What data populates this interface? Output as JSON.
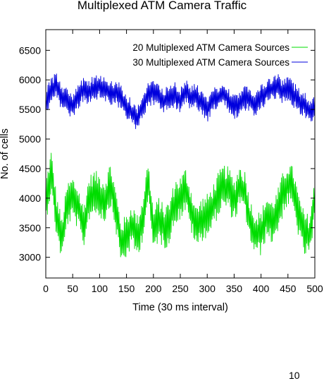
{
  "page_number": "10",
  "chart_data": {
    "type": "line",
    "title": "Multiplexed ATM Camera Traffic",
    "xlabel": "Time (30 ms interval)",
    "ylabel": "No. of cells",
    "xlim": [
      0,
      500
    ],
    "ylim": [
      2650,
      6850
    ],
    "xticks": [
      "0",
      "50",
      "100",
      "150",
      "200",
      "250",
      "300",
      "350",
      "400",
      "450",
      "500"
    ],
    "yticks": [
      "3000",
      "3500",
      "4000",
      "4500",
      "5000",
      "5500",
      "6000",
      "6500"
    ],
    "legend_position": "top-right",
    "grid": false,
    "series": [
      {
        "name": "20 Multiplexed ATM Camera Sources",
        "color": "#00dd00",
        "x": [
          0,
          10,
          20,
          30,
          40,
          50,
          60,
          70,
          80,
          90,
          100,
          110,
          120,
          130,
          140,
          150,
          160,
          170,
          180,
          190,
          200,
          210,
          220,
          230,
          240,
          250,
          260,
          270,
          280,
          290,
          300,
          310,
          320,
          330,
          340,
          350,
          360,
          370,
          380,
          390,
          400,
          410,
          420,
          430,
          440,
          450,
          460,
          470,
          480,
          490,
          500
        ],
        "values": [
          3950,
          4450,
          3700,
          3300,
          3900,
          4000,
          3850,
          3500,
          4000,
          4100,
          4050,
          3950,
          4250,
          3800,
          3250,
          3350,
          3550,
          3350,
          3650,
          4300,
          3450,
          3650,
          3500,
          3600,
          3950,
          4000,
          4150,
          3800,
          3500,
          3650,
          3700,
          3850,
          4050,
          4200,
          4150,
          3950,
          4200,
          4100,
          3600,
          3400,
          3400,
          3700,
          3600,
          3750,
          4050,
          4250,
          4150,
          3700,
          3400,
          3350,
          3950
        ]
      },
      {
        "name": "30 Multiplexed ATM Camera Sources",
        "color": "#0000dd",
        "x": [
          0,
          10,
          20,
          30,
          40,
          50,
          60,
          70,
          80,
          90,
          100,
          110,
          120,
          130,
          140,
          150,
          160,
          170,
          180,
          190,
          200,
          210,
          220,
          230,
          240,
          250,
          260,
          270,
          280,
          290,
          300,
          310,
          320,
          330,
          340,
          350,
          360,
          370,
          380,
          390,
          400,
          410,
          420,
          430,
          440,
          450,
          460,
          470,
          480,
          490,
          500
        ],
        "values": [
          5600,
          5850,
          5900,
          5700,
          5650,
          5550,
          5700,
          5850,
          5800,
          5850,
          5900,
          5850,
          5750,
          5800,
          5700,
          5550,
          5450,
          5350,
          5550,
          5750,
          5800,
          5700,
          5650,
          5700,
          5750,
          5650,
          5800,
          5700,
          5750,
          5600,
          5500,
          5650,
          5700,
          5800,
          5650,
          5550,
          5600,
          5700,
          5650,
          5600,
          5700,
          5800,
          5850,
          5900,
          5800,
          5850,
          5750,
          5650,
          5600,
          5500,
          5550
        ]
      }
    ]
  }
}
